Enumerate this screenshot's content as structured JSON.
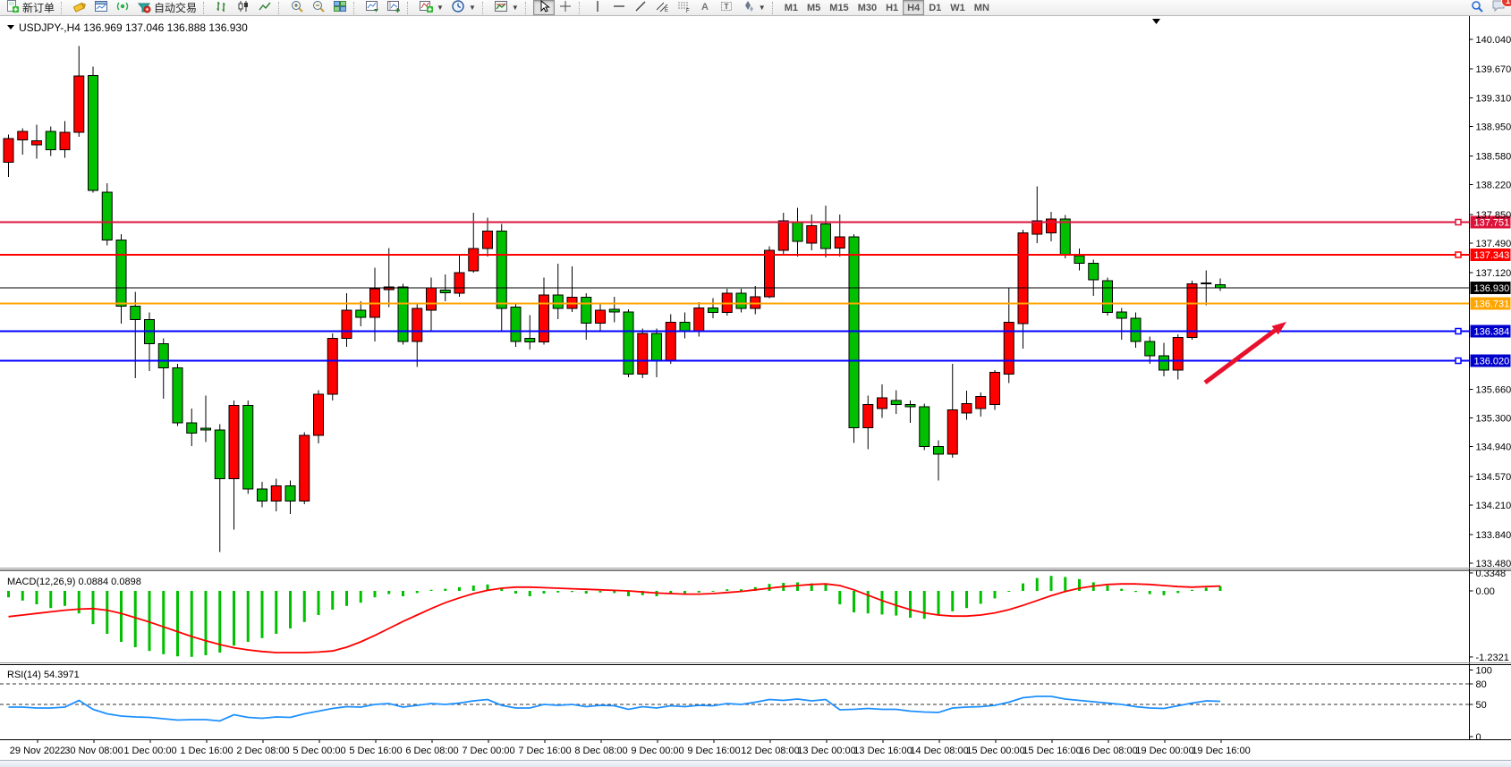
{
  "toolbar": {
    "new_order_label": "新订单",
    "autotrade_label": "自动交易",
    "timeframes": [
      "M1",
      "M5",
      "M15",
      "M30",
      "H1",
      "H4",
      "D1",
      "W1",
      "MN"
    ],
    "active_timeframe": "H4",
    "notification_count": "1"
  },
  "chart_data": {
    "type": "candlestick",
    "title": {
      "symbol_period": "USDJPY-,H4",
      "open": "136.969",
      "high": "137.046",
      "low": "136.888",
      "close": "136.930"
    },
    "colors": {
      "bull_up": "#FF0000",
      "bear_down": "#00C000",
      "wick": "#000000",
      "rsi_line": "#1E90FF",
      "macd_hist": "#00C000",
      "macd_signal": "#FF0000",
      "arrow": "#E8112D"
    },
    "price_axis": {
      "ticks": [
        140.04,
        139.67,
        139.31,
        138.95,
        138.58,
        138.22,
        137.85,
        137.49,
        137.12,
        135.66,
        135.3,
        134.94,
        134.57,
        134.21,
        133.84,
        133.48
      ],
      "ylim": [
        133.48,
        140.04
      ]
    },
    "levels": [
      {
        "price": 137.751,
        "color": "#DC143C",
        "width": 2,
        "handle": true,
        "badge_bg": "#DC143C"
      },
      {
        "price": 137.343,
        "color": "#FF0000",
        "width": 2,
        "handle": true,
        "badge_bg": "#FF0000"
      },
      {
        "price": 136.93,
        "color": "#000000",
        "width": 1,
        "handle": false,
        "badge_bg": "#000000"
      },
      {
        "price": 136.731,
        "color": "#FFA500",
        "width": 2,
        "handle": false,
        "badge_bg": "#FFA500"
      },
      {
        "price": 136.384,
        "color": "#0000FF",
        "width": 2,
        "handle": true,
        "badge_bg": "#0000CD"
      },
      {
        "price": 136.02,
        "color": "#0000FF",
        "width": 2,
        "handle": true,
        "badge_bg": "#0000CD"
      }
    ],
    "time_axis": [
      "29 Nov 2022",
      "30 Nov 08:00",
      "1 Dec 00:00",
      "1 Dec 16:00",
      "2 Dec 08:00",
      "5 Dec 00:00",
      "5 Dec 16:00",
      "6 Dec 08:00",
      "7 Dec 00:00",
      "7 Dec 16:00",
      "8 Dec 08:00",
      "9 Dec 00:00",
      "9 Dec 16:00",
      "12 Dec 08:00",
      "13 Dec 00:00",
      "13 Dec 16:00",
      "14 Dec 08:00",
      "15 Dec 00:00",
      "15 Dec 16:00",
      "16 Dec 08:00",
      "19 Dec 00:00",
      "19 Dec 16:00"
    ],
    "candles": [
      [
        138.5,
        138.85,
        138.32,
        138.8
      ],
      [
        138.78,
        138.93,
        138.6,
        138.89
      ],
      [
        138.72,
        138.97,
        138.55,
        138.77
      ],
      [
        138.89,
        138.95,
        138.58,
        138.66
      ],
      [
        138.66,
        139.02,
        138.56,
        138.88
      ],
      [
        138.88,
        139.96,
        138.82,
        139.58
      ],
      [
        139.59,
        139.7,
        138.12,
        138.15
      ],
      [
        138.13,
        138.24,
        137.46,
        137.53
      ],
      [
        137.53,
        137.6,
        136.48,
        136.7
      ],
      [
        136.7,
        136.88,
        135.8,
        136.53
      ],
      [
        136.53,
        136.62,
        135.89,
        136.23
      ],
      [
        136.23,
        136.3,
        135.54,
        135.93
      ],
      [
        135.93,
        135.98,
        135.2,
        135.24
      ],
      [
        135.24,
        135.42,
        134.95,
        135.11
      ],
      [
        135.17,
        135.58,
        135.0,
        135.15
      ],
      [
        135.15,
        135.22,
        133.62,
        134.54
      ],
      [
        134.54,
        135.52,
        133.9,
        135.46
      ],
      [
        135.46,
        135.52,
        134.35,
        134.41
      ],
      [
        134.41,
        134.5,
        134.18,
        134.26
      ],
      [
        134.26,
        134.54,
        134.13,
        134.45
      ],
      [
        134.45,
        134.52,
        134.1,
        134.26
      ],
      [
        134.26,
        135.12,
        134.22,
        135.08
      ],
      [
        135.08,
        135.65,
        134.98,
        135.6
      ],
      [
        135.6,
        136.36,
        135.52,
        136.3
      ],
      [
        136.3,
        136.86,
        136.19,
        136.65
      ],
      [
        136.65,
        136.76,
        136.45,
        136.56
      ],
      [
        136.56,
        137.18,
        136.26,
        136.92
      ],
      [
        136.91,
        137.43,
        136.69,
        136.94
      ],
      [
        136.94,
        136.98,
        136.22,
        136.26
      ],
      [
        136.26,
        136.72,
        135.94,
        136.67
      ],
      [
        136.65,
        137.06,
        136.39,
        136.93
      ],
      [
        136.9,
        137.1,
        136.76,
        136.87
      ],
      [
        136.86,
        137.34,
        136.82,
        137.12
      ],
      [
        137.14,
        137.87,
        137.12,
        137.42
      ],
      [
        137.42,
        137.81,
        137.32,
        137.64
      ],
      [
        137.64,
        137.73,
        136.39,
        136.67
      ],
      [
        136.69,
        136.74,
        136.19,
        136.26
      ],
      [
        136.3,
        136.59,
        136.16,
        136.25
      ],
      [
        136.25,
        137.06,
        136.22,
        136.84
      ],
      [
        136.84,
        137.23,
        136.54,
        136.67
      ],
      [
        136.67,
        137.2,
        136.63,
        136.81
      ],
      [
        136.81,
        136.86,
        136.28,
        136.49
      ],
      [
        136.49,
        136.72,
        136.4,
        136.65
      ],
      [
        136.66,
        136.82,
        136.5,
        136.63
      ],
      [
        136.63,
        136.66,
        135.81,
        135.85
      ],
      [
        135.85,
        136.42,
        135.8,
        136.36
      ],
      [
        136.36,
        136.42,
        135.81,
        136.02
      ],
      [
        136.02,
        136.6,
        135.98,
        136.5
      ],
      [
        136.5,
        136.62,
        136.3,
        136.38
      ],
      [
        136.38,
        136.75,
        136.32,
        136.68
      ],
      [
        136.68,
        136.8,
        136.55,
        136.62
      ],
      [
        136.62,
        136.92,
        136.58,
        136.86
      ],
      [
        136.86,
        136.92,
        136.62,
        136.67
      ],
      [
        136.67,
        136.95,
        136.6,
        136.82
      ],
      [
        136.82,
        137.45,
        136.8,
        137.4
      ],
      [
        137.4,
        137.87,
        137.35,
        137.77
      ],
      [
        137.76,
        137.93,
        137.32,
        137.51
      ],
      [
        137.49,
        137.85,
        137.4,
        137.71
      ],
      [
        137.73,
        137.96,
        137.31,
        137.42
      ],
      [
        137.43,
        137.85,
        137.32,
        137.57
      ],
      [
        137.57,
        137.6,
        134.99,
        135.18
      ],
      [
        135.18,
        135.58,
        134.91,
        135.47
      ],
      [
        135.42,
        135.72,
        135.3,
        135.55
      ],
      [
        135.52,
        135.65,
        135.35,
        135.47
      ],
      [
        135.47,
        135.52,
        135.24,
        135.44
      ],
      [
        135.44,
        135.48,
        134.9,
        134.94
      ],
      [
        134.94,
        135.02,
        134.52,
        134.85
      ],
      [
        134.85,
        135.98,
        134.8,
        135.4
      ],
      [
        135.36,
        135.64,
        135.28,
        135.48
      ],
      [
        135.42,
        135.62,
        135.32,
        135.57
      ],
      [
        135.47,
        135.9,
        135.4,
        135.87
      ],
      [
        135.85,
        136.93,
        135.74,
        136.5
      ],
      [
        136.48,
        137.66,
        136.17,
        137.62
      ],
      [
        137.6,
        138.2,
        137.49,
        137.77
      ],
      [
        137.62,
        137.88,
        137.51,
        137.79
      ],
      [
        137.79,
        137.84,
        137.3,
        137.34
      ],
      [
        137.33,
        137.42,
        137.15,
        137.24
      ],
      [
        137.24,
        137.28,
        136.83,
        137.03
      ],
      [
        137.02,
        137.06,
        136.58,
        136.62
      ],
      [
        136.63,
        136.68,
        136.28,
        136.55
      ],
      [
        136.55,
        136.62,
        136.18,
        136.26
      ],
      [
        136.26,
        136.32,
        135.98,
        136.08
      ],
      [
        136.08,
        136.24,
        135.82,
        135.9
      ],
      [
        135.9,
        136.35,
        135.78,
        136.31
      ],
      [
        136.31,
        137.02,
        136.28,
        136.98
      ],
      [
        136.99,
        137.15,
        136.71,
        136.98
      ],
      [
        136.969,
        137.046,
        136.888,
        136.93
      ]
    ],
    "macd": {
      "label": "MACD(12,26,9)",
      "values": [
        "0.0884",
        "0.0898"
      ],
      "axis": [
        0.3348,
        0.0,
        -1.2321
      ],
      "hist": [
        -0.12,
        -0.18,
        -0.25,
        -0.32,
        -0.28,
        -0.42,
        -0.62,
        -0.8,
        -0.95,
        -1.05,
        -1.12,
        -1.18,
        -1.22,
        -1.23,
        -1.2,
        -1.15,
        -1.02,
        -0.95,
        -0.88,
        -0.8,
        -0.7,
        -0.58,
        -0.45,
        -0.35,
        -0.28,
        -0.22,
        -0.12,
        -0.06,
        -0.1,
        -0.04,
        0.02,
        0.04,
        0.07,
        0.1,
        0.12,
        0.05,
        -0.05,
        -0.1,
        -0.05,
        -0.03,
        -0.02,
        -0.05,
        -0.03,
        -0.04,
        -0.1,
        -0.08,
        -0.1,
        -0.06,
        -0.05,
        -0.03,
        -0.01,
        0.03,
        0.03,
        0.07,
        0.13,
        0.15,
        0.16,
        0.14,
        0.12,
        -0.25,
        -0.4,
        -0.42,
        -0.44,
        -0.46,
        -0.5,
        -0.52,
        -0.45,
        -0.38,
        -0.32,
        -0.24,
        -0.14,
        0.0,
        0.14,
        0.24,
        0.28,
        0.26,
        0.22,
        0.16,
        0.1,
        0.04,
        -0.02,
        -0.06,
        -0.08,
        -0.04,
        0.02,
        0.06,
        0.0884
      ],
      "signal": [
        -0.48,
        -0.45,
        -0.42,
        -0.39,
        -0.36,
        -0.34,
        -0.33,
        -0.36,
        -0.42,
        -0.5,
        -0.58,
        -0.67,
        -0.76,
        -0.85,
        -0.93,
        -1.0,
        -1.06,
        -1.1,
        -1.13,
        -1.15,
        -1.15,
        -1.15,
        -1.14,
        -1.12,
        -1.05,
        -0.95,
        -0.83,
        -0.7,
        -0.57,
        -0.45,
        -0.33,
        -0.22,
        -0.13,
        -0.05,
        0.01,
        0.05,
        0.07,
        0.07,
        0.06,
        0.05,
        0.04,
        0.03,
        0.02,
        0.01,
        0.0,
        -0.02,
        -0.04,
        -0.05,
        -0.06,
        -0.06,
        -0.05,
        -0.03,
        -0.01,
        0.02,
        0.05,
        0.08,
        0.1,
        0.12,
        0.13,
        0.1,
        0.02,
        -0.08,
        -0.18,
        -0.27,
        -0.35,
        -0.41,
        -0.45,
        -0.47,
        -0.47,
        -0.45,
        -0.41,
        -0.35,
        -0.27,
        -0.18,
        -0.09,
        -0.01,
        0.05,
        0.09,
        0.12,
        0.13,
        0.13,
        0.12,
        0.1,
        0.08,
        0.07,
        0.08,
        0.0898
      ]
    },
    "rsi": {
      "label": "RSI(14)",
      "value": "54.3971",
      "axis": [
        100,
        80,
        50,
        0
      ],
      "dashed_levels": [
        80,
        50
      ],
      "series": [
        46,
        46,
        45,
        45,
        46,
        56,
        43,
        36,
        33,
        32,
        31,
        29,
        27,
        28,
        28,
        26,
        35,
        31,
        30,
        32,
        31,
        36,
        40,
        44,
        47,
        46,
        50,
        51,
        46,
        49,
        51,
        50,
        52,
        55,
        57,
        49,
        45,
        45,
        50,
        49,
        50,
        47,
        49,
        48,
        43,
        47,
        45,
        48,
        47,
        49,
        48,
        51,
        50,
        53,
        57,
        56,
        58,
        55,
        57,
        42,
        43,
        44,
        43,
        43,
        40,
        39,
        38,
        45,
        46,
        47,
        49,
        53,
        60,
        62,
        62,
        58,
        56,
        54,
        52,
        50,
        47,
        45,
        44,
        48,
        52,
        55,
        54.4
      ]
    },
    "arrow": {
      "from": [
        1347,
        428
      ],
      "to": [
        1438,
        360
      ],
      "color": "#E8112D"
    }
  }
}
